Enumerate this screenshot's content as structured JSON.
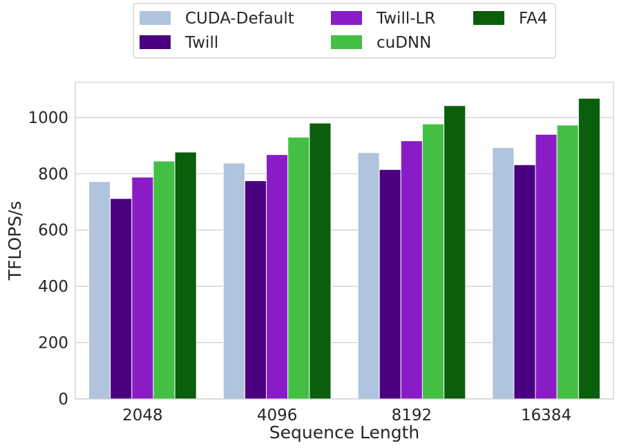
{
  "chart_data": {
    "type": "bar",
    "title": "",
    "xlabel": "Sequence Length",
    "ylabel": "TFLOPS/s",
    "categories": [
      "2048",
      "4096",
      "8192",
      "16384"
    ],
    "ylim": [
      0,
      1125
    ],
    "yticks": [
      0,
      200,
      400,
      600,
      800,
      1000
    ],
    "grid": "horizontal",
    "legend_position": "top-center",
    "series": [
      {
        "name": "CUDA-Default",
        "color": "#b0c4de",
        "values": [
          772,
          838,
          875,
          893
        ]
      },
      {
        "name": "Twill",
        "color": "#4b0082",
        "values": [
          712,
          775,
          815,
          832
        ]
      },
      {
        "name": "Twill-LR",
        "color": "#8a1cc8",
        "values": [
          788,
          868,
          917,
          940
        ]
      },
      {
        "name": "cuDNN",
        "color": "#43bf43",
        "values": [
          845,
          930,
          977,
          973
        ]
      },
      {
        "name": "FA4",
        "color": "#0b5e0b",
        "values": [
          877,
          980,
          1042,
          1068
        ]
      }
    ]
  }
}
